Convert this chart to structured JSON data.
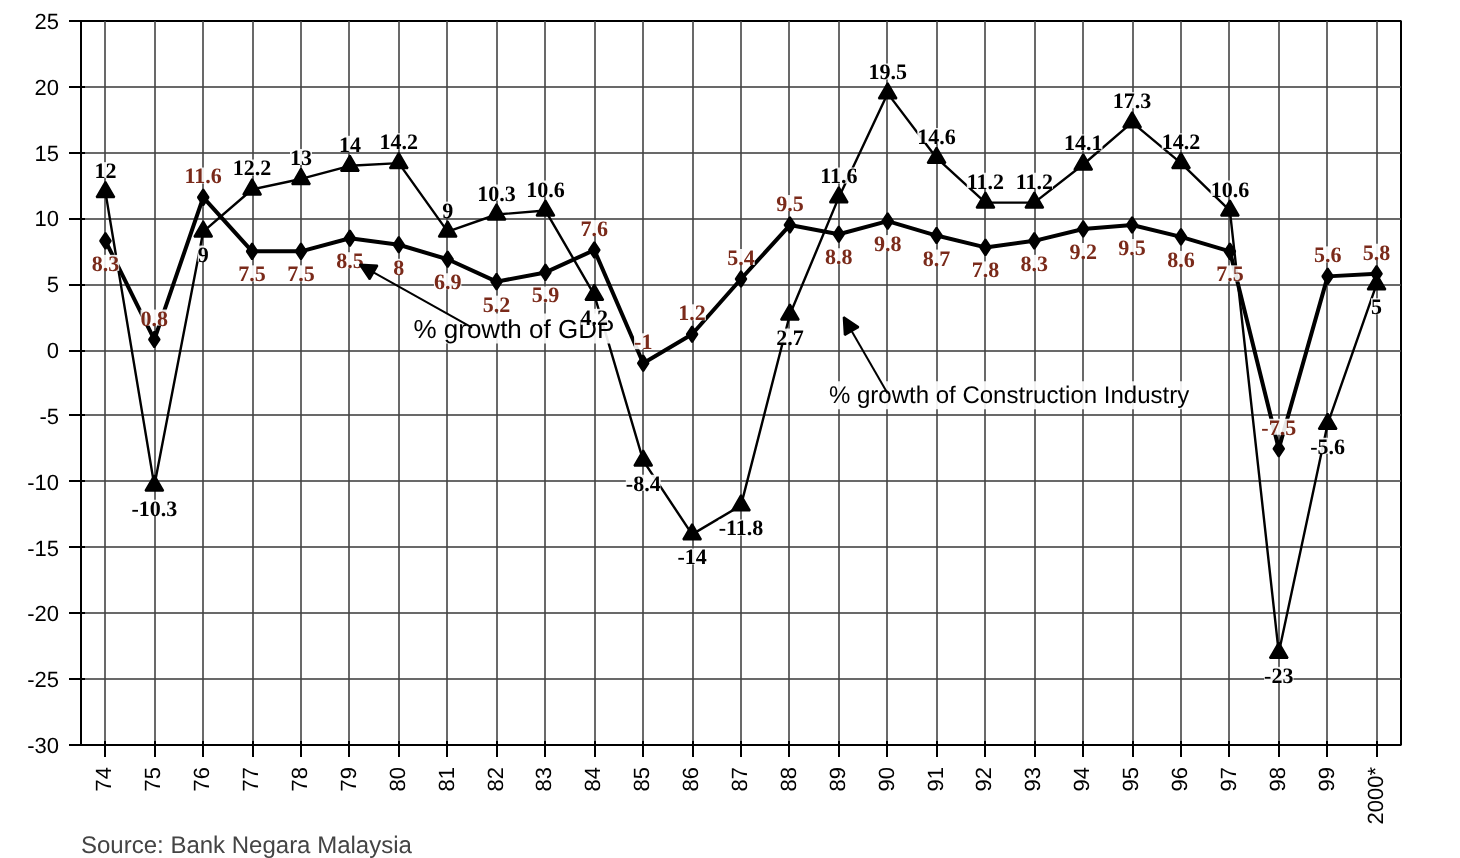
{
  "chart_data": {
    "type": "line",
    "categories": [
      "74",
      "75",
      "76",
      "77",
      "78",
      "79",
      "80",
      "81",
      "82",
      "83",
      "84",
      "85",
      "86",
      "87",
      "88",
      "89",
      "90",
      "91",
      "92",
      "93",
      "94",
      "95",
      "96",
      "97",
      "98",
      "99",
      "2000*"
    ],
    "series": [
      {
        "name": "% growth of GDP",
        "color": "#000000",
        "marker": "diamond",
        "values": [
          8.3,
          0.8,
          11.6,
          7.5,
          7.5,
          8.5,
          8,
          6.9,
          5.2,
          5.9,
          7.6,
          -1,
          1.2,
          5.4,
          9.5,
          8.8,
          9.8,
          8.7,
          7.8,
          8.3,
          9.2,
          9.5,
          8.6,
          7.5,
          -7.5,
          5.6,
          5.8
        ]
      },
      {
        "name": "% growth of Construction Industry",
        "color": "#000000",
        "marker": "triangle",
        "values": [
          12,
          -10.3,
          9,
          12.2,
          13,
          14,
          14.2,
          9,
          10.3,
          10.6,
          4.2,
          -8.4,
          -14,
          -11.8,
          2.7,
          11.6,
          19.5,
          14.6,
          11.2,
          11.2,
          14.1,
          17.3,
          14.2,
          10.6,
          -23,
          -5.6,
          5
        ]
      }
    ],
    "ylim": [
      -30,
      25
    ],
    "yticks": [
      -30,
      -25,
      -20,
      -15,
      -10,
      -5,
      0,
      5,
      10,
      15,
      20,
      25
    ],
    "grid": true,
    "data_labels": true,
    "annotations": [
      "Source: Bank Negara Malaysia"
    ]
  }
}
